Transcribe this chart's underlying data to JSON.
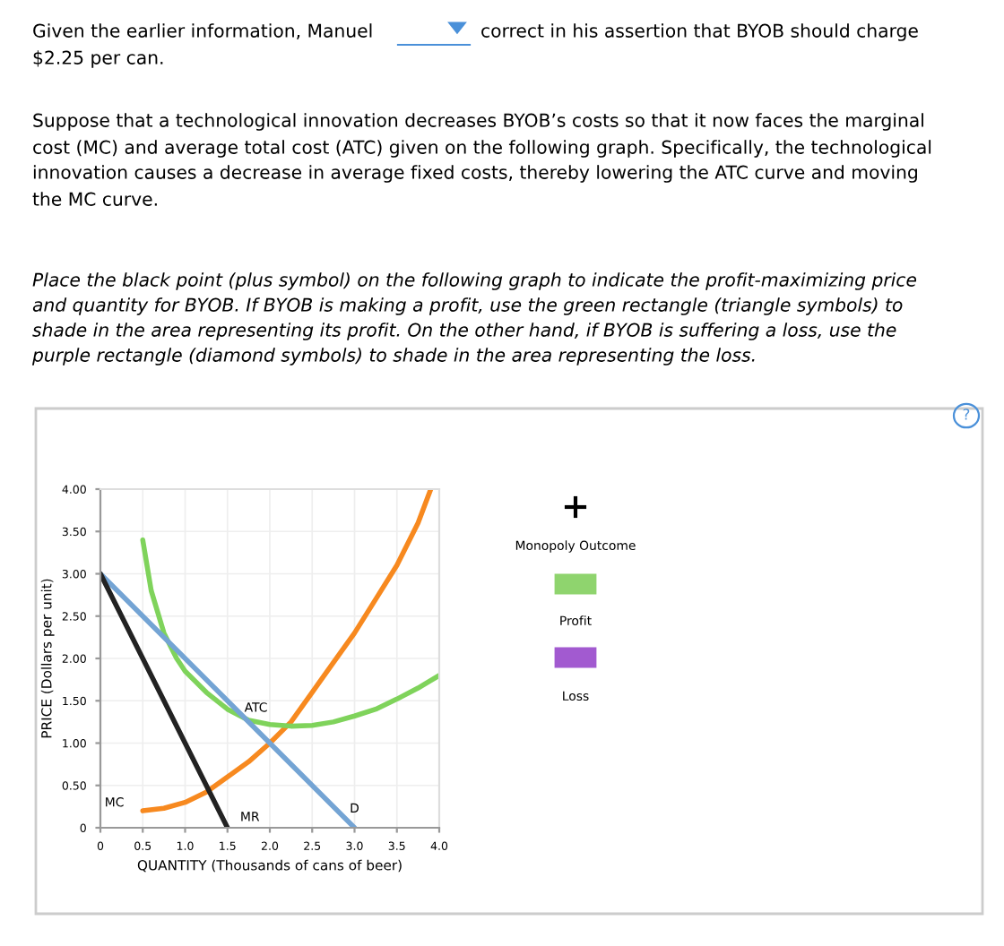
{
  "chart_data": {
    "type": "line",
    "xlabel": "QUANTITY (Thousands of cans of beer)",
    "ylabel": "PRICE (Dollars per unit)",
    "xlim": [
      0,
      4
    ],
    "ylim": [
      0,
      4
    ],
    "xticks": [
      {
        "value": 0,
        "label": "0"
      },
      {
        "value": 0.5,
        "label": "0.5"
      },
      {
        "value": 1,
        "label": "1.0"
      },
      {
        "value": 1.5,
        "label": "1.5"
      },
      {
        "value": 2,
        "label": "2.0"
      },
      {
        "value": 2.5,
        "label": "2.5"
      },
      {
        "value": 3,
        "label": "3.0"
      },
      {
        "value": 3.5,
        "label": "3.5"
      },
      {
        "value": 4,
        "label": "4.0"
      }
    ],
    "yticks": [
      {
        "value": 0,
        "label": "0"
      },
      {
        "value": 0.5,
        "label": "0.50"
      },
      {
        "value": 1,
        "label": "1.00"
      },
      {
        "value": 1.5,
        "label": "1.50"
      },
      {
        "value": 2,
        "label": "2.00"
      },
      {
        "value": 2.5,
        "label": "2.50"
      },
      {
        "value": 3,
        "label": "3.00"
      },
      {
        "value": 3.5,
        "label": "3.50"
      },
      {
        "value": 4,
        "label": "4.00"
      }
    ],
    "grid": true,
    "marker": "none",
    "line_style": "solid",
    "series": [
      {
        "name": "MC",
        "color": "#f7891f",
        "x": [
          0.5,
          0.75,
          1,
          1.25,
          1.5,
          1.75,
          2,
          2.25,
          2.5,
          2.75,
          3,
          3.25,
          3.5,
          3.75,
          3.9
        ],
        "values": [
          0.2,
          0.23,
          0.3,
          0.42,
          0.6,
          0.78,
          1.0,
          1.25,
          1.6,
          1.95,
          2.3,
          2.7,
          3.1,
          3.6,
          4.0
        ]
      },
      {
        "name": "ATC",
        "color": "#7fd35b",
        "x": [
          0.5,
          0.6,
          0.75,
          0.9,
          1,
          1.25,
          1.5,
          1.75,
          2,
          2.25,
          2.5,
          2.75,
          3,
          3.25,
          3.5,
          3.75,
          4
        ],
        "values": [
          3.4,
          2.8,
          2.3,
          2.0,
          1.85,
          1.6,
          1.4,
          1.27,
          1.22,
          1.2,
          1.21,
          1.25,
          1.32,
          1.4,
          1.52,
          1.65,
          1.8
        ]
      },
      {
        "name": "D",
        "color": "#74a4d4",
        "x": [
          0,
          3
        ],
        "values": [
          3,
          0
        ]
      },
      {
        "name": "MR",
        "color": "#222222",
        "x": [
          0,
          1.5
        ],
        "values": [
          3,
          0
        ]
      }
    ],
    "annotations": [
      "Given the earlier information, Manuel",
      "correct in his assertion that BYOB should charge",
      "$2.25 per can.",
      "Suppose that a technological innovation decreases BYOB’s costs so that it now faces the marginal",
      "cost (MC) and average total cost (ATC) given on the following graph. Specifically, the technological",
      "innovation causes a decrease in average fixed costs, thereby lowering the ATC curve and moving",
      "the MC curve.",
      "Place the black point (plus symbol) on the following graph to indicate the profit-maximizing price",
      "and quantity for BYOB. If BYOB is making a profit, use the green rectangle (triangle symbols) to",
      "shade in the area representing its profit. On the other hand, if BYOB is suffering a loss, use the",
      "purple rectangle (diamond symbols) to shade in the area representing the loss.",
      "Monopoly Outcome",
      "Profit",
      "Loss",
      "?"
    ]
  }
}
